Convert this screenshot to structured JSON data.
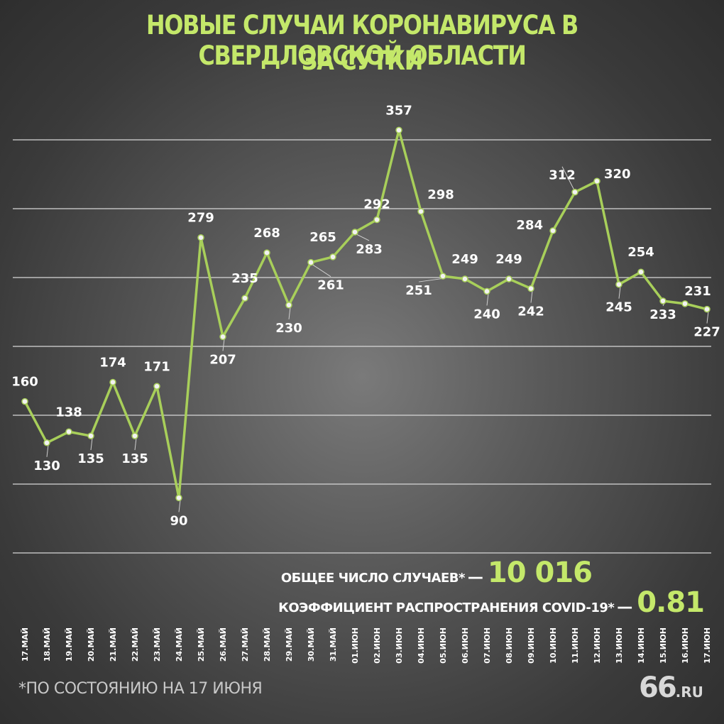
{
  "title_line1": "НОВЫЕ СЛУЧАИ КОРОНАВИРУСА В СВЕРДЛОВСКОЙ ОБЛАСТИ",
  "title_line2": "ЗА СУТКИ",
  "summary": {
    "total_label": "ОБЩЕЕ ЧИСЛО СЛУЧАЕВ*",
    "total_value": "10 016",
    "r_label": "КОЭФФИЦИЕНТ РАСПРОСТРАНЕНИЯ COVID-19*",
    "r_value": "0.81",
    "dash": "—"
  },
  "footnote": "*ПО СОСТОЯНИЮ НА 17 ИЮНЯ",
  "logo": {
    "number": "66",
    "suffix": ".RU"
  },
  "colors": {
    "line": "#a8cf5a",
    "title": "#c4e86a",
    "text": "#ffffff",
    "grid": "#d8d8d8"
  },
  "chart_data": {
    "type": "line",
    "categories": [
      "17.МАЙ",
      "18.МАЙ",
      "19.МАЙ",
      "20.МАЙ",
      "21.МАЙ",
      "22.МАЙ",
      "23.МАЙ",
      "24.МАЙ",
      "25.МАЙ",
      "26.МАЙ",
      "27.МАЙ",
      "28.МАЙ",
      "29.МАЙ",
      "30.МАЙ",
      "31.МАЙ",
      "01.ИЮН",
      "02.ИЮН",
      "03.ИЮН",
      "04.ИЮН",
      "05.ИЮН",
      "06.ИЮН",
      "07.ИЮН",
      "08.ИЮН",
      "09.ИЮН",
      "10.ИЮН",
      "11.ИЮН",
      "12.ИЮН",
      "13.ИЮН",
      "14.ИЮН",
      "15.ИЮН",
      "16.ИЮН",
      "17.ИЮН"
    ],
    "values": [
      160,
      130,
      138,
      135,
      174,
      135,
      171,
      90,
      279,
      207,
      235,
      268,
      230,
      261,
      265,
      283,
      292,
      357,
      298,
      251,
      249,
      240,
      249,
      242,
      284,
      312,
      320,
      245,
      254,
      233,
      231,
      227
    ],
    "ylim": [
      50,
      350
    ],
    "grid": true,
    "gridlines": [
      50,
      100,
      150,
      200,
      250,
      300,
      350
    ]
  }
}
